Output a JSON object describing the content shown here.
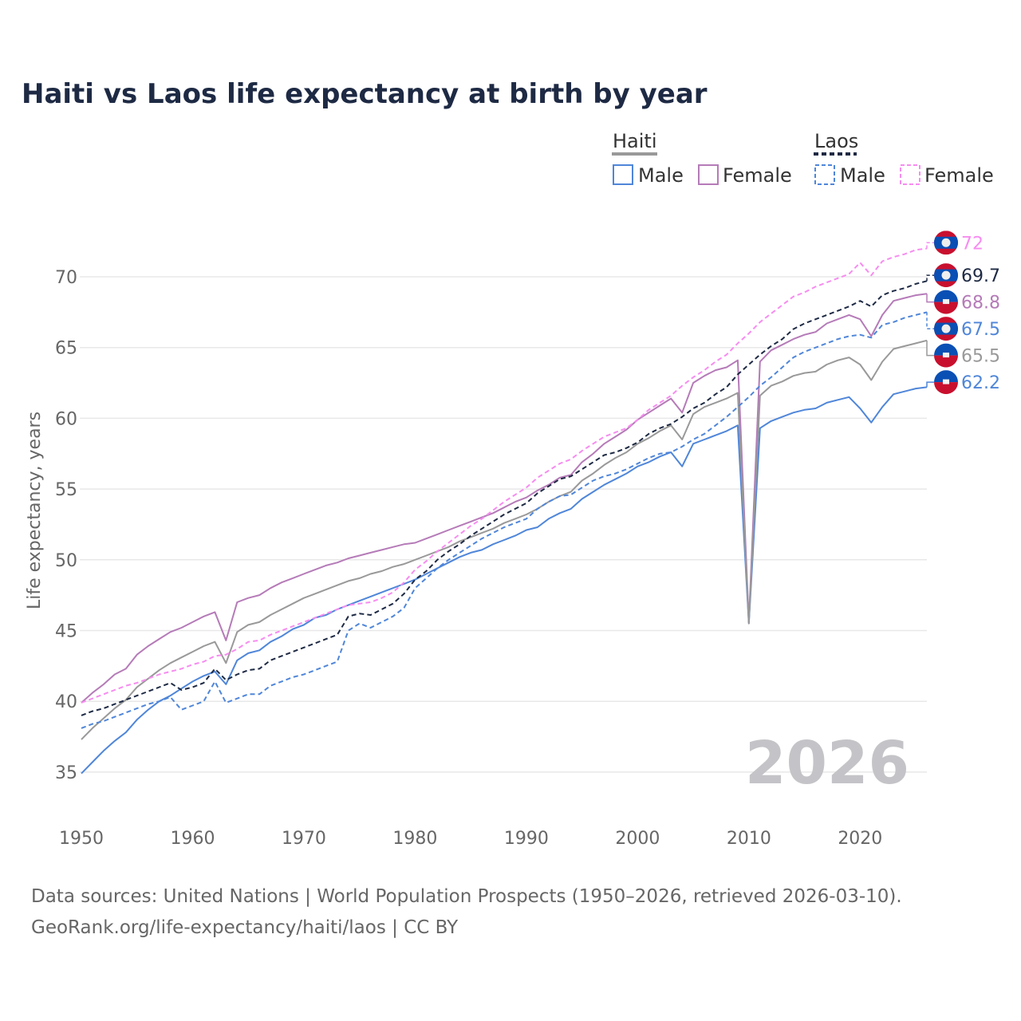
{
  "chart_data": {
    "type": "line",
    "title": "Haiti vs Laos life expectancy at birth by year",
    "ylabel": "Life expectancy, years",
    "xlabel": "",
    "xlim": [
      1950,
      2026
    ],
    "ylim": [
      32.5,
      73.5
    ],
    "yticks": [
      35,
      40,
      45,
      50,
      55,
      60,
      65,
      70
    ],
    "xticks": [
      1950,
      1960,
      1970,
      1980,
      1990,
      2000,
      2010,
      2020
    ],
    "grid": true,
    "watermark": "2026",
    "legend": {
      "placement": "top-right",
      "groups": [
        {
          "name": "Haiti",
          "items": [
            "Male",
            "Female"
          ]
        },
        {
          "name": "Laos",
          "items": [
            "Male",
            "Female"
          ]
        }
      ]
    },
    "x_start": 1950,
    "series": [
      {
        "id": "haiti-female",
        "country": "Haiti",
        "name": "Female",
        "color": "#b57bb8",
        "dash": false,
        "end_label": "68.8",
        "flag": "haiti",
        "values": [
          39.9,
          40.6,
          41.2,
          41.9,
          42.3,
          43.3,
          43.9,
          44.4,
          44.9,
          45.2,
          45.6,
          46.0,
          46.3,
          44.3,
          47.0,
          47.3,
          47.5,
          48.0,
          48.4,
          48.7,
          49.0,
          49.3,
          49.6,
          49.8,
          50.1,
          50.3,
          50.5,
          50.7,
          50.9,
          51.1,
          51.2,
          51.5,
          51.8,
          52.1,
          52.4,
          52.7,
          53.0,
          53.3,
          53.7,
          54.1,
          54.4,
          54.9,
          55.3,
          55.8,
          56.0,
          56.9,
          57.5,
          58.2,
          58.7,
          59.2,
          59.9,
          60.4,
          60.9,
          61.4,
          60.4,
          62.5,
          63.0,
          63.4,
          63.6,
          64.1,
          45.6,
          64.0,
          64.8,
          65.2,
          65.6,
          65.9,
          66.1,
          66.7,
          67.0,
          67.3,
          67.0,
          65.8,
          67.3,
          68.3,
          68.5,
          68.7,
          68.8
        ]
      },
      {
        "id": "haiti-male",
        "country": "Haiti",
        "name": "Male",
        "color": "#4f86d9",
        "dash": false,
        "end_label": "62.2",
        "flag": "haiti",
        "values": [
          34.9,
          35.7,
          36.5,
          37.2,
          37.8,
          38.7,
          39.4,
          40.0,
          40.4,
          40.9,
          41.4,
          41.8,
          42.1,
          41.2,
          42.9,
          43.4,
          43.6,
          44.2,
          44.6,
          45.1,
          45.4,
          45.9,
          46.1,
          46.5,
          46.8,
          47.1,
          47.4,
          47.7,
          48.0,
          48.3,
          48.6,
          49.0,
          49.4,
          49.8,
          50.2,
          50.5,
          50.7,
          51.1,
          51.4,
          51.7,
          52.1,
          52.3,
          52.9,
          53.3,
          53.6,
          54.3,
          54.8,
          55.3,
          55.7,
          56.1,
          56.6,
          56.9,
          57.3,
          57.6,
          56.6,
          58.2,
          58.5,
          58.8,
          59.1,
          59.5,
          45.5,
          59.3,
          59.8,
          60.1,
          60.4,
          60.6,
          60.7,
          61.1,
          61.3,
          61.5,
          60.7,
          59.7,
          60.8,
          61.7,
          61.9,
          62.1,
          62.2
        ]
      },
      {
        "id": "haiti-total",
        "country": "Haiti",
        "name": "Total",
        "color": "#999999",
        "dash": false,
        "end_label": "65.5",
        "flag": "haiti",
        "values": [
          37.3,
          38.1,
          38.8,
          39.5,
          40.1,
          41.0,
          41.6,
          42.2,
          42.7,
          43.1,
          43.5,
          43.9,
          44.2,
          42.7,
          44.9,
          45.4,
          45.6,
          46.1,
          46.5,
          46.9,
          47.3,
          47.6,
          47.9,
          48.2,
          48.5,
          48.7,
          49.0,
          49.2,
          49.5,
          49.7,
          50.0,
          50.3,
          50.6,
          50.9,
          51.3,
          51.6,
          51.9,
          52.2,
          52.6,
          52.9,
          53.2,
          53.6,
          54.1,
          54.5,
          54.8,
          55.6,
          56.1,
          56.7,
          57.2,
          57.6,
          58.2,
          58.6,
          59.1,
          59.5,
          58.5,
          60.3,
          60.8,
          61.1,
          61.4,
          61.8,
          45.5,
          61.6,
          62.3,
          62.6,
          63.0,
          63.2,
          63.3,
          63.8,
          64.1,
          64.3,
          63.8,
          62.7,
          64.0,
          64.9,
          65.1,
          65.3,
          65.5
        ]
      },
      {
        "id": "laos-total",
        "country": "Laos",
        "name": "Total",
        "color": "#1e2a44",
        "dash": true,
        "end_label": "69.7",
        "flag": "laos",
        "values": [
          39.0,
          39.3,
          39.5,
          39.8,
          40.1,
          40.4,
          40.7,
          41.0,
          41.3,
          40.8,
          41.0,
          41.3,
          42.3,
          41.5,
          41.9,
          42.2,
          42.3,
          42.9,
          43.2,
          43.5,
          43.8,
          44.1,
          44.4,
          44.7,
          46.0,
          46.2,
          46.1,
          46.5,
          46.9,
          47.6,
          48.6,
          49.2,
          50.0,
          50.6,
          51.1,
          51.7,
          52.2,
          52.7,
          53.2,
          53.6,
          54.0,
          54.7,
          55.2,
          55.7,
          55.9,
          56.4,
          56.9,
          57.4,
          57.6,
          57.9,
          58.3,
          58.9,
          59.3,
          59.6,
          60.1,
          60.7,
          61.1,
          61.7,
          62.2,
          63.1,
          63.8,
          64.5,
          65.1,
          65.6,
          66.3,
          66.7,
          67.0,
          67.3,
          67.6,
          67.9,
          68.3,
          67.9,
          68.7,
          69.0,
          69.2,
          69.5,
          69.7
        ]
      },
      {
        "id": "laos-male",
        "country": "Laos",
        "name": "Male",
        "color": "#4f86d9",
        "dash": true,
        "end_label": "67.5",
        "flag": "laos",
        "values": [
          38.1,
          38.4,
          38.6,
          38.9,
          39.2,
          39.5,
          39.8,
          40.0,
          40.3,
          39.4,
          39.7,
          40.0,
          41.4,
          39.9,
          40.2,
          40.5,
          40.5,
          41.1,
          41.4,
          41.7,
          41.9,
          42.2,
          42.5,
          42.8,
          45.0,
          45.5,
          45.2,
          45.6,
          46.0,
          46.6,
          48.0,
          48.7,
          49.4,
          50.0,
          50.5,
          51.0,
          51.5,
          51.9,
          52.3,
          52.6,
          52.9,
          53.6,
          54.1,
          54.5,
          54.6,
          55.1,
          55.6,
          55.9,
          56.1,
          56.4,
          56.8,
          57.2,
          57.5,
          57.6,
          58.0,
          58.5,
          58.9,
          59.5,
          60.1,
          60.8,
          61.5,
          62.3,
          62.9,
          63.6,
          64.3,
          64.7,
          65.0,
          65.3,
          65.6,
          65.8,
          65.9,
          65.7,
          66.6,
          66.8,
          67.1,
          67.3,
          67.5
        ]
      },
      {
        "id": "laos-female",
        "country": "Laos",
        "name": "Female",
        "color": "#f78cf0",
        "dash": true,
        "end_label": "72",
        "flag": "laos",
        "values": [
          39.9,
          40.2,
          40.5,
          40.8,
          41.1,
          41.3,
          41.6,
          41.9,
          42.1,
          42.3,
          42.6,
          42.8,
          43.2,
          43.3,
          43.7,
          44.2,
          44.3,
          44.7,
          45.0,
          45.3,
          45.6,
          45.9,
          46.2,
          46.5,
          46.8,
          46.9,
          47.0,
          47.3,
          47.7,
          48.4,
          49.3,
          49.9,
          50.6,
          51.2,
          51.8,
          52.4,
          52.9,
          53.5,
          54.1,
          54.6,
          55.1,
          55.8,
          56.3,
          56.8,
          57.1,
          57.7,
          58.2,
          58.7,
          59.0,
          59.3,
          59.9,
          60.6,
          61.1,
          61.6,
          62.3,
          62.9,
          63.4,
          64.0,
          64.5,
          65.3,
          66.0,
          66.8,
          67.4,
          68.0,
          68.6,
          68.9,
          69.3,
          69.6,
          69.9,
          70.2,
          71.0,
          70.1,
          71.1,
          71.4,
          71.6,
          71.9,
          72.0
        ]
      }
    ]
  },
  "footer": {
    "line1": "Data sources: United Nations | World Population Prospects (1950–2026, retrieved 2026-03-10).",
    "line2": "GeoRank.org/life-expectancy/haiti/laos | CC BY"
  },
  "colors": {
    "haiti_blue": "#0a4fb4",
    "flag_red": "#c8102e",
    "total_haiti": "#999999",
    "total_laos": "#1e2a44"
  }
}
